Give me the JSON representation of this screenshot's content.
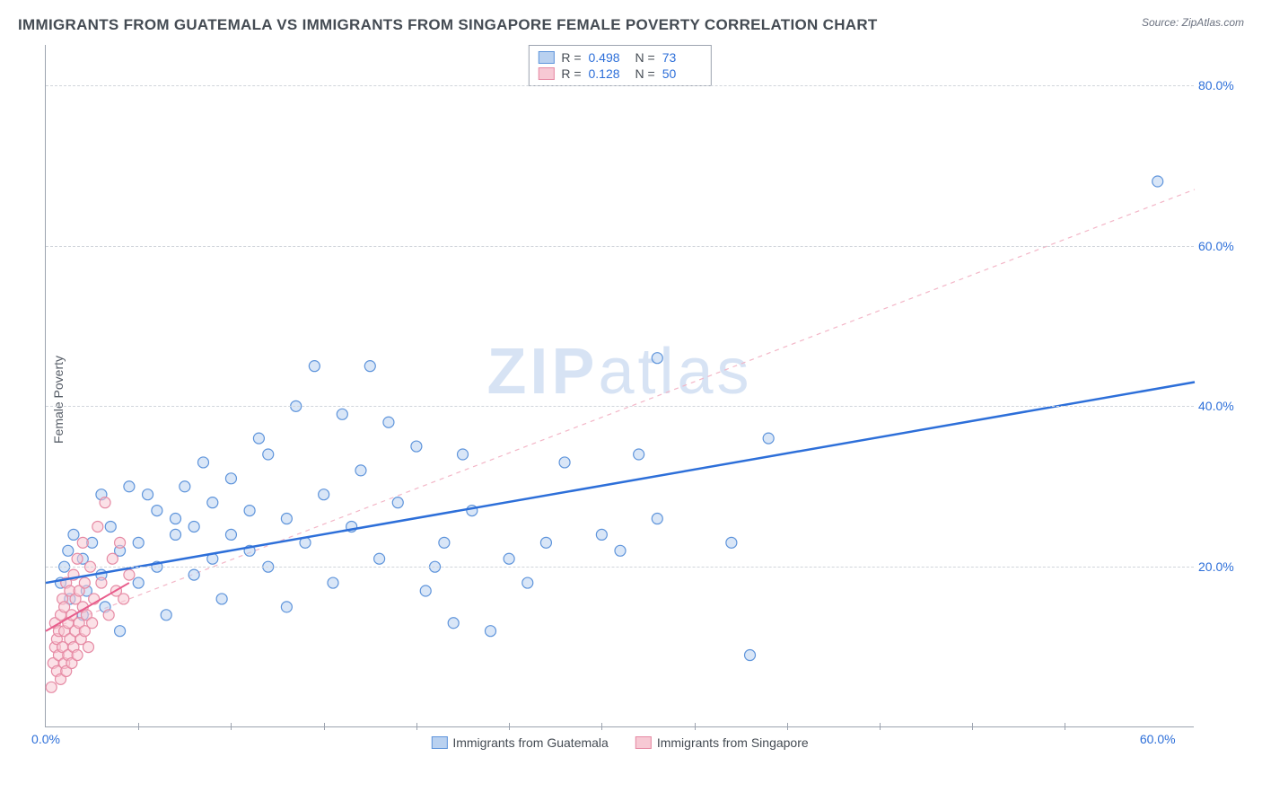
{
  "title": "IMMIGRANTS FROM GUATEMALA VS IMMIGRANTS FROM SINGAPORE FEMALE POVERTY CORRELATION CHART",
  "source_label": "Source:",
  "source_site": "ZipAtlas.com",
  "watermark_bold": "ZIP",
  "watermark_light": "atlas",
  "y_axis_label": "Female Poverty",
  "chart": {
    "type": "scatter",
    "background_color": "#ffffff",
    "grid_color": "#d1d5db",
    "axis_color": "#9ca3af",
    "tick_font_color": "#2d6fd9",
    "tick_fontsize": 14,
    "title_fontsize": 17,
    "title_color": "#444b53",
    "xlim": [
      0,
      62
    ],
    "ylim": [
      0,
      85
    ],
    "y_ticks": [
      20,
      40,
      60,
      80
    ],
    "y_tick_labels": [
      "20.0%",
      "40.0%",
      "60.0%",
      "80.0%"
    ],
    "x_ticks": [
      0,
      60
    ],
    "x_tick_labels": [
      "0.0%",
      "60.0%"
    ],
    "x_minor_ticks": [
      5,
      10,
      15,
      20,
      25,
      30,
      35,
      40,
      45,
      50,
      55
    ],
    "marker_radius": 6,
    "marker_stroke_width": 1.2,
    "series": [
      {
        "name": "Immigrants from Guatemala",
        "fill_color": "#b9d1f0",
        "stroke_color": "#5e94db",
        "fill_opacity": 0.55,
        "R": "0.498",
        "N": "73",
        "trend_solid": {
          "x1": 0,
          "y1": 18,
          "x2": 62,
          "y2": 43,
          "color": "#2d6fd9",
          "width": 2.5
        },
        "points": [
          [
            0.8,
            18
          ],
          [
            1,
            20
          ],
          [
            1.2,
            22
          ],
          [
            1.3,
            16
          ],
          [
            1.5,
            24
          ],
          [
            2,
            14
          ],
          [
            2,
            21
          ],
          [
            2.2,
            17
          ],
          [
            2.5,
            23
          ],
          [
            3,
            19
          ],
          [
            3,
            29
          ],
          [
            3.2,
            15
          ],
          [
            3.5,
            25
          ],
          [
            4,
            12
          ],
          [
            4,
            22
          ],
          [
            4.5,
            30
          ],
          [
            5,
            18
          ],
          [
            5,
            23
          ],
          [
            5.5,
            29
          ],
          [
            6,
            20
          ],
          [
            6,
            27
          ],
          [
            6.5,
            14
          ],
          [
            7,
            24
          ],
          [
            7,
            26
          ],
          [
            7.5,
            30
          ],
          [
            8,
            19
          ],
          [
            8,
            25
          ],
          [
            8.5,
            33
          ],
          [
            9,
            21
          ],
          [
            9,
            28
          ],
          [
            9.5,
            16
          ],
          [
            10,
            24
          ],
          [
            10,
            31
          ],
          [
            11,
            22
          ],
          [
            11,
            27
          ],
          [
            11.5,
            36
          ],
          [
            12,
            20
          ],
          [
            12,
            34
          ],
          [
            13,
            26
          ],
          [
            13,
            15
          ],
          [
            13.5,
            40
          ],
          [
            14,
            23
          ],
          [
            14.5,
            45
          ],
          [
            15,
            29
          ],
          [
            15.5,
            18
          ],
          [
            16,
            39
          ],
          [
            16.5,
            25
          ],
          [
            17,
            32
          ],
          [
            17.5,
            45
          ],
          [
            18,
            21
          ],
          [
            18.5,
            38
          ],
          [
            19,
            28
          ],
          [
            20,
            35
          ],
          [
            20.5,
            17
          ],
          [
            21,
            20
          ],
          [
            21.5,
            23
          ],
          [
            22,
            13
          ],
          [
            22.5,
            34
          ],
          [
            23,
            27
          ],
          [
            24,
            12
          ],
          [
            25,
            21
          ],
          [
            26,
            18
          ],
          [
            27,
            23
          ],
          [
            28,
            33
          ],
          [
            30,
            24
          ],
          [
            31,
            22
          ],
          [
            32,
            34
          ],
          [
            33,
            26
          ],
          [
            33,
            46
          ],
          [
            37,
            23
          ],
          [
            38,
            9
          ],
          [
            39,
            36
          ],
          [
            60,
            68
          ]
        ]
      },
      {
        "name": "Immigrants from Singapore",
        "fill_color": "#f7c9d4",
        "stroke_color": "#e68aa4",
        "fill_opacity": 0.55,
        "R": "0.128",
        "N": "50",
        "trend_solid": {
          "x1": 0,
          "y1": 12,
          "x2": 4.5,
          "y2": 18,
          "color": "#e85d8c",
          "width": 2
        },
        "trend_dashed": {
          "x1": 0,
          "y1": 12,
          "x2": 62,
          "y2": 67,
          "color": "#f3b6c7",
          "width": 1.2,
          "dash": "5,5"
        },
        "points": [
          [
            0.3,
            5
          ],
          [
            0.4,
            8
          ],
          [
            0.5,
            10
          ],
          [
            0.5,
            13
          ],
          [
            0.6,
            7
          ],
          [
            0.6,
            11
          ],
          [
            0.7,
            9
          ],
          [
            0.7,
            12
          ],
          [
            0.8,
            6
          ],
          [
            0.8,
            14
          ],
          [
            0.9,
            10
          ],
          [
            0.9,
            16
          ],
          [
            1.0,
            8
          ],
          [
            1.0,
            12
          ],
          [
            1.0,
            15
          ],
          [
            1.1,
            7
          ],
          [
            1.1,
            18
          ],
          [
            1.2,
            9
          ],
          [
            1.2,
            13
          ],
          [
            1.3,
            11
          ],
          [
            1.3,
            17
          ],
          [
            1.4,
            8
          ],
          [
            1.4,
            14
          ],
          [
            1.5,
            10
          ],
          [
            1.5,
            19
          ],
          [
            1.6,
            12
          ],
          [
            1.6,
            16
          ],
          [
            1.7,
            9
          ],
          [
            1.7,
            21
          ],
          [
            1.8,
            13
          ],
          [
            1.8,
            17
          ],
          [
            1.9,
            11
          ],
          [
            2.0,
            15
          ],
          [
            2.0,
            23
          ],
          [
            2.1,
            12
          ],
          [
            2.1,
            18
          ],
          [
            2.2,
            14
          ],
          [
            2.3,
            10
          ],
          [
            2.4,
            20
          ],
          [
            2.5,
            13
          ],
          [
            2.6,
            16
          ],
          [
            2.8,
            25
          ],
          [
            3.0,
            18
          ],
          [
            3.2,
            28
          ],
          [
            3.4,
            14
          ],
          [
            3.6,
            21
          ],
          [
            3.8,
            17
          ],
          [
            4.0,
            23
          ],
          [
            4.2,
            16
          ],
          [
            4.5,
            19
          ]
        ]
      }
    ]
  },
  "stats_legend": {
    "r_label": "R =",
    "n_label": "N ="
  },
  "bottom_legend": {
    "items": [
      {
        "label": "Immigrants from Guatemala",
        "fill": "#b9d1f0",
        "stroke": "#5e94db"
      },
      {
        "label": "Immigrants from Singapore",
        "fill": "#f7c9d4",
        "stroke": "#e68aa4"
      }
    ]
  }
}
